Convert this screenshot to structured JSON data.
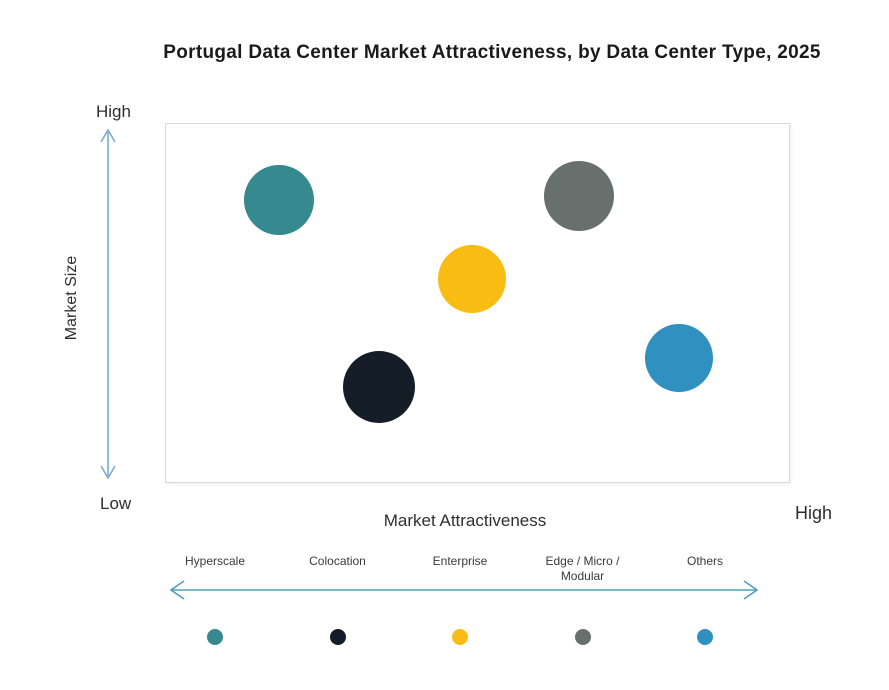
{
  "title": "Portugal Data Center Market Attractiveness,  by Data Center Type, 2025",
  "axes": {
    "y_title": "Market Size",
    "y_high_label": "High",
    "y_low_label": "Low",
    "x_title": "Market Attractiveness",
    "x_high_label": "High"
  },
  "chart_data": {
    "type": "scatter",
    "subtype": "bubble",
    "title": "Portugal Data Center Market Attractiveness, by Data Center Type, 2025",
    "xlabel": "Market Attractiveness",
    "ylabel": "Market Size",
    "x_axis": {
      "range": [
        0,
        1
      ],
      "low_label": "",
      "high_label": "High",
      "ticks": []
    },
    "y_axis": {
      "range": [
        0,
        1
      ],
      "low_label": "Low",
      "high_label": "High",
      "ticks": []
    },
    "grid": false,
    "legend_position": "bottom",
    "series": [
      {
        "name": "Hyperscale",
        "x": 0.18,
        "y": 0.79,
        "radius_px": 35,
        "color": "#36898F"
      },
      {
        "name": "Colocation",
        "x": 0.34,
        "y": 0.27,
        "radius_px": 36,
        "color": "#141D28"
      },
      {
        "name": "Enterprise",
        "x": 0.49,
        "y": 0.57,
        "radius_px": 34,
        "color": "#F9BC13"
      },
      {
        "name": "Edge / Micro / Modular",
        "x": 0.66,
        "y": 0.8,
        "radius_px": 35,
        "color": "#67706D"
      },
      {
        "name": "Others",
        "x": 0.82,
        "y": 0.35,
        "radius_px": 34,
        "color": "#3090BF"
      }
    ]
  },
  "colors": {
    "y_arrow": "#7AAECD",
    "x_arrow": "#4E9DC0",
    "plot_border": "#D9D9D9",
    "title_text": "#1A1A1A"
  }
}
